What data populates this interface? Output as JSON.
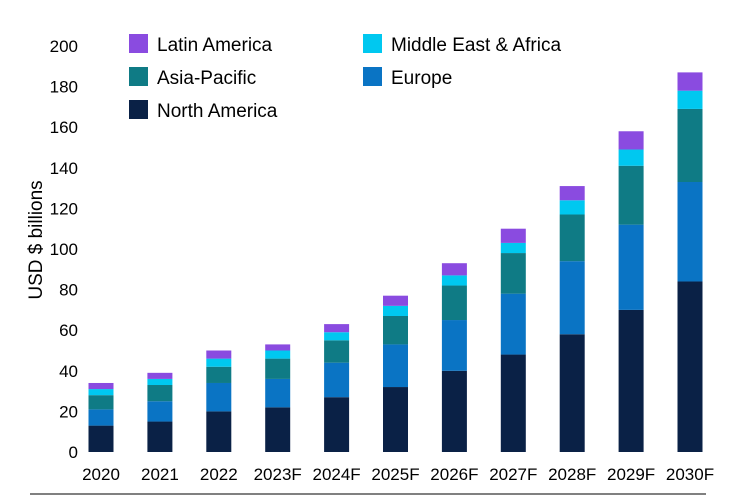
{
  "chart_data": {
    "type": "bar",
    "stacked": true,
    "ylabel": "USD $ billions",
    "ylim": [
      0,
      200
    ],
    "yticks": [
      0,
      20,
      40,
      60,
      80,
      100,
      120,
      140,
      160,
      180,
      200
    ],
    "grid": false,
    "legend_position": "top-left",
    "categories": [
      "2020",
      "2021",
      "2022",
      "2023F",
      "2024F",
      "2025F",
      "2026F",
      "2027F",
      "2028F",
      "2029F",
      "2030F"
    ],
    "series": [
      {
        "name": "North America",
        "color": "#0a2146",
        "values": [
          13,
          15,
          20,
          22,
          27,
          32,
          40,
          48,
          58,
          70,
          84
        ]
      },
      {
        "name": "Europe",
        "color": "#0a74c4",
        "values": [
          8,
          10,
          14,
          14,
          17,
          21,
          25,
          30,
          36,
          42,
          49
        ]
      },
      {
        "name": "Asia-Pacific",
        "color": "#0f7b85",
        "values": [
          7,
          8,
          8,
          10,
          11,
          14,
          17,
          20,
          23,
          29,
          36
        ]
      },
      {
        "name": "Middle East & Africa",
        "color": "#00c8f0",
        "values": [
          3,
          3,
          4,
          4,
          4,
          5,
          5,
          5,
          7,
          8,
          9
        ]
      },
      {
        "name": "Latin America",
        "color": "#8a4be0",
        "values": [
          3,
          3,
          4,
          3,
          4,
          5,
          6,
          7,
          7,
          9,
          9
        ]
      }
    ],
    "legend_order": [
      "Latin America",
      "Middle East & Africa",
      "Asia-Pacific",
      "Europe",
      "North America"
    ]
  }
}
